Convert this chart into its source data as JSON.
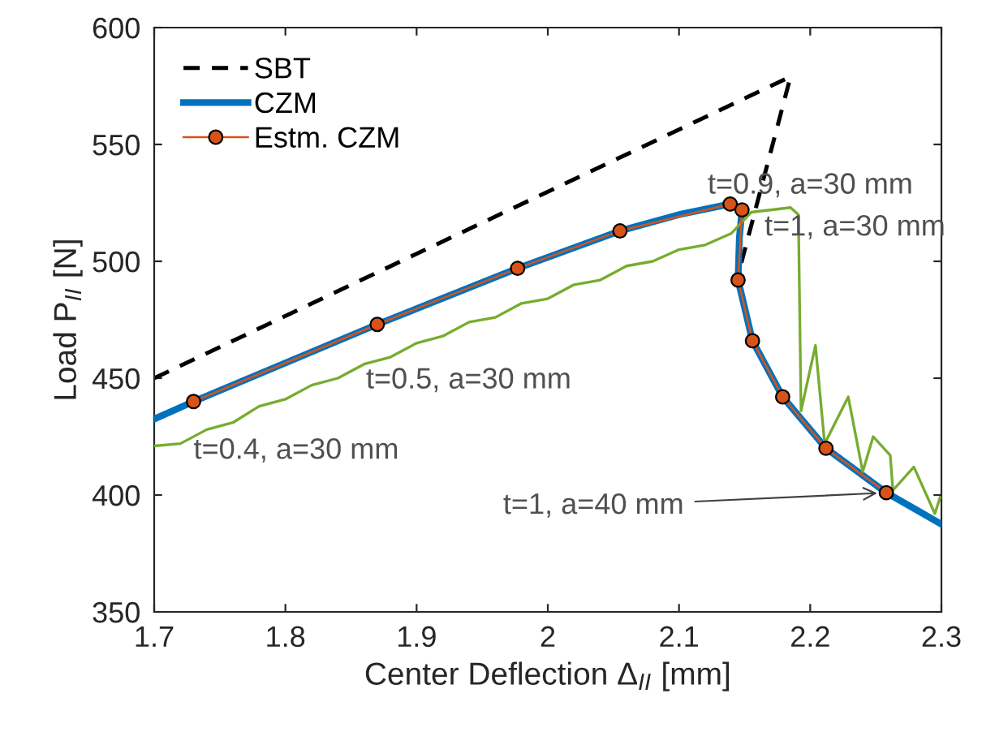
{
  "chart_data": {
    "type": "line",
    "xlabel": "Center Deflection Δ$_{II}$ [mm]",
    "ylabel": "Load P$_{II}$ [N]",
    "xlim": [
      1.7,
      2.3
    ],
    "ylim": [
      350,
      600
    ],
    "xticks": [
      1.7,
      1.8,
      1.9,
      2,
      2.1,
      2.2,
      2.3
    ],
    "yticks": [
      350,
      400,
      450,
      500,
      550,
      600
    ],
    "grid": false,
    "legend": "top left",
    "series": [
      {
        "name": "SBT",
        "color": "#000000",
        "line_style": "dashed",
        "marker": "none",
        "x": [
          1.7,
          2.185,
          2.145
        ],
        "values": [
          450,
          579,
          494
        ]
      },
      {
        "name": "CZM",
        "color": "#0072bd",
        "line_style": "solid",
        "marker": "none",
        "x": [
          1.7,
          1.73,
          1.87,
          1.977,
          2.055,
          2.1,
          2.139,
          2.148,
          2.146,
          2.145,
          2.156,
          2.179,
          2.212,
          2.258,
          2.28,
          2.3
        ],
        "values": [
          432.5,
          440,
          473,
          497,
          513,
          520,
          524.5,
          522,
          510,
          492,
          466,
          442,
          420,
          401,
          394,
          387.5
        ]
      },
      {
        "color": "#77ac30",
        "line_style": "solid",
        "marker": "none",
        "x": [
          1.7,
          1.72,
          1.74,
          1.76,
          1.78,
          1.8,
          1.82,
          1.84,
          1.86,
          1.88,
          1.9,
          1.92,
          1.94,
          1.96,
          1.98,
          2.0,
          2.02,
          2.04,
          2.06,
          2.08,
          2.1,
          2.12,
          2.14,
          2.155,
          2.185,
          2.191,
          2.193,
          2.204,
          2.211,
          2.229,
          2.24,
          2.248,
          2.261,
          2.263,
          2.279,
          2.295,
          2.299
        ],
        "values": [
          421,
          422,
          428,
          431,
          438,
          441,
          447,
          450,
          456,
          459,
          465,
          468,
          474,
          476,
          482,
          484,
          490,
          492,
          498,
          500,
          505,
          507,
          512,
          521,
          523,
          520,
          436,
          464,
          422,
          442,
          410,
          425,
          417,
          402,
          412,
          392,
          399
        ]
      },
      {
        "name": "Estm. CZM",
        "color": "#d95319",
        "line_style": "solid",
        "marker": "circle",
        "x": [
          1.73,
          1.87,
          1.977,
          2.055,
          2.139,
          2.148,
          2.145,
          2.156,
          2.179,
          2.212,
          2.258
        ],
        "values": [
          440,
          473,
          497,
          513,
          524.5,
          522,
          492,
          466,
          442,
          420,
          401
        ]
      }
    ],
    "annotations": [
      {
        "text": "t=0.4, a=30 mm",
        "x": 1.73,
        "y": 440
      },
      {
        "text": "t=0.5, a=30 mm",
        "x": 1.87,
        "y": 473
      },
      {
        "text": "t=0.9, a=30 mm",
        "x": 2.139,
        "y": 524.5
      },
      {
        "text": "t=1, a=30 mm",
        "x": 2.148,
        "y": 522
      },
      {
        "text": "t=1, a=40 mm",
        "x": 2.258,
        "y": 401
      }
    ]
  }
}
